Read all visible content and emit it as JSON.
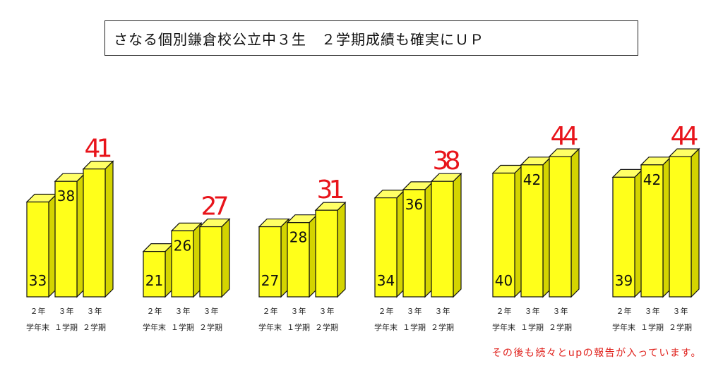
{
  "title": "さなる個別鎌倉校公立中３生　２学期成績も確実にＵＰ",
  "footnote": "その後も続々とupの報告が入っています。",
  "colors": {
    "bar_front": "#ffff1a",
    "bar_top": "#ffff66",
    "bar_side": "#d4d400",
    "outline": "#111111",
    "highlight_label": "#e8141b"
  },
  "chart_data": {
    "type": "bar",
    "categories": [
      [
        "２年",
        "学年末"
      ],
      [
        "３年",
        "１学期"
      ],
      [
        "３年",
        "２学期"
      ]
    ],
    "students": [
      {
        "values": [
          33,
          38,
          41
        ]
      },
      {
        "values": [
          21,
          26,
          27
        ]
      },
      {
        "values": [
          27,
          28,
          31
        ]
      },
      {
        "values": [
          34,
          36,
          38
        ]
      },
      {
        "values": [
          40,
          42,
          44
        ]
      },
      {
        "values": [
          39,
          42,
          44
        ]
      }
    ],
    "highlight": "last value of each group drawn in red above bar"
  }
}
